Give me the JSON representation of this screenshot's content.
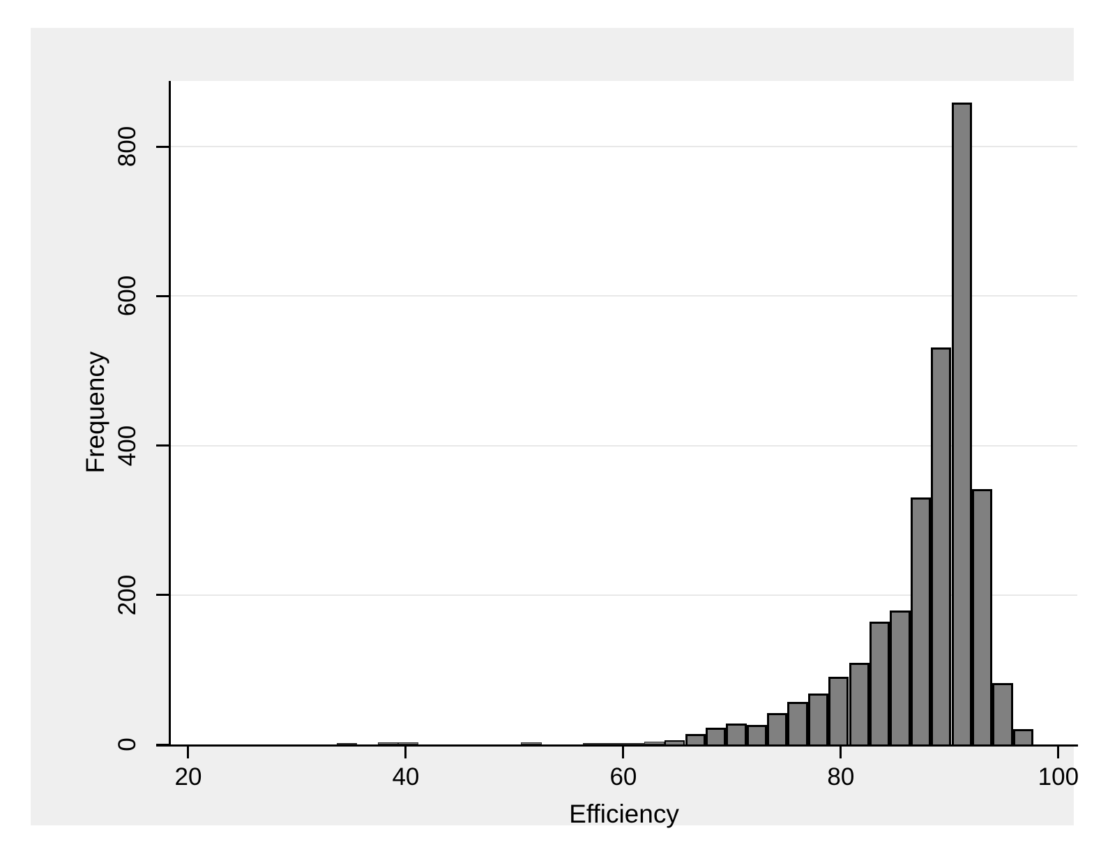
{
  "figure": {
    "background": "#ffffff",
    "panel_background": "#efefef",
    "plot_background": "#ffffff",
    "gridline_color": "#e8e8e8",
    "axis_color": "#000000",
    "text_color": "#000000",
    "bar_fill": "#808080",
    "bar_border": "#000000"
  },
  "chart_data": {
    "type": "bar",
    "subtype": "histogram",
    "title": "",
    "xlabel": "Efficiency",
    "ylabel": "Frequency",
    "x_ticks": [
      20,
      40,
      60,
      80,
      100
    ],
    "y_ticks": [
      0,
      200,
      400,
      600,
      800
    ],
    "xlim": [
      18.4,
      101.74
    ],
    "ylim": [
      0,
      888
    ],
    "grid": "horizontal",
    "legend": "none",
    "bin_width": 1.884,
    "bin_starts": [
      33.65,
      35.53,
      37.42,
      39.3,
      41.18,
      43.07,
      44.95,
      46.84,
      48.72,
      50.6,
      52.49,
      54.37,
      56.26,
      58.14,
      60.02,
      61.91,
      63.79,
      65.68,
      67.56,
      69.44,
      71.33,
      73.21,
      75.1,
      76.98,
      78.86,
      80.75,
      82.63,
      84.52,
      86.4,
      88.28,
      90.17,
      92.05,
      93.94,
      95.82
    ],
    "counts": [
      2,
      0,
      3,
      3,
      0,
      0,
      0,
      0,
      0,
      3,
      0,
      0,
      2,
      2,
      2,
      4,
      6,
      14,
      22,
      28,
      26,
      42,
      57,
      68,
      91,
      109,
      164,
      179,
      331,
      531,
      859,
      342,
      82,
      21
    ]
  }
}
